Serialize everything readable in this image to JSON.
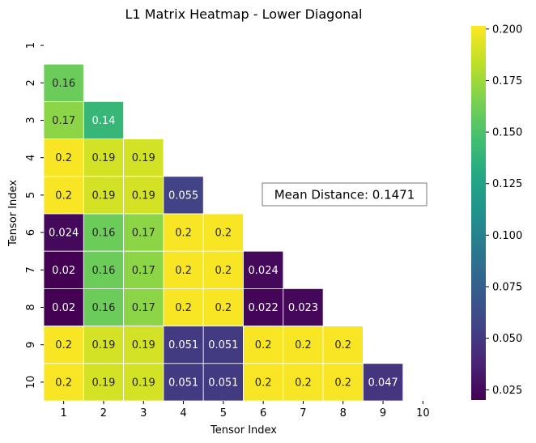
{
  "chart_data": {
    "type": "heatmap",
    "title": "L1 Matrix Heatmap - Lower Diagonal",
    "xlabel": "Tensor Index",
    "ylabel": "Tensor Index",
    "x_ticks": [
      "1",
      "2",
      "3",
      "4",
      "5",
      "6",
      "7",
      "8",
      "9",
      "10"
    ],
    "y_ticks": [
      "1",
      "2",
      "3",
      "4",
      "5",
      "6",
      "7",
      "8",
      "9",
      "10"
    ],
    "colormap": "viridis",
    "vmin": 0.02,
    "vmax": 0.2015,
    "colorbar_ticks": [
      "0.025",
      "0.050",
      "0.075",
      "0.100",
      "0.125",
      "0.150",
      "0.175",
      "0.200"
    ],
    "annotation": "Mean Distance: 0.1471",
    "cells": [
      {
        "row": 2,
        "col": 1,
        "value": 0.16,
        "label": "0.16"
      },
      {
        "row": 3,
        "col": 1,
        "value": 0.17,
        "label": "0.17"
      },
      {
        "row": 3,
        "col": 2,
        "value": 0.14,
        "label": "0.14"
      },
      {
        "row": 4,
        "col": 1,
        "value": 0.2,
        "label": "0.2"
      },
      {
        "row": 4,
        "col": 2,
        "value": 0.19,
        "label": "0.19"
      },
      {
        "row": 4,
        "col": 3,
        "value": 0.19,
        "label": "0.19"
      },
      {
        "row": 5,
        "col": 1,
        "value": 0.2,
        "label": "0.2"
      },
      {
        "row": 5,
        "col": 2,
        "value": 0.19,
        "label": "0.19"
      },
      {
        "row": 5,
        "col": 3,
        "value": 0.19,
        "label": "0.19"
      },
      {
        "row": 5,
        "col": 4,
        "value": 0.055,
        "label": "0.055"
      },
      {
        "row": 6,
        "col": 1,
        "value": 0.024,
        "label": "0.024"
      },
      {
        "row": 6,
        "col": 2,
        "value": 0.16,
        "label": "0.16"
      },
      {
        "row": 6,
        "col": 3,
        "value": 0.17,
        "label": "0.17"
      },
      {
        "row": 6,
        "col": 4,
        "value": 0.2,
        "label": "0.2"
      },
      {
        "row": 6,
        "col": 5,
        "value": 0.2,
        "label": "0.2"
      },
      {
        "row": 7,
        "col": 1,
        "value": 0.02,
        "label": "0.02"
      },
      {
        "row": 7,
        "col": 2,
        "value": 0.16,
        "label": "0.16"
      },
      {
        "row": 7,
        "col": 3,
        "value": 0.17,
        "label": "0.17"
      },
      {
        "row": 7,
        "col": 4,
        "value": 0.2,
        "label": "0.2"
      },
      {
        "row": 7,
        "col": 5,
        "value": 0.2,
        "label": "0.2"
      },
      {
        "row": 7,
        "col": 6,
        "value": 0.024,
        "label": "0.024"
      },
      {
        "row": 8,
        "col": 1,
        "value": 0.02,
        "label": "0.02"
      },
      {
        "row": 8,
        "col": 2,
        "value": 0.16,
        "label": "0.16"
      },
      {
        "row": 8,
        "col": 3,
        "value": 0.17,
        "label": "0.17"
      },
      {
        "row": 8,
        "col": 4,
        "value": 0.2,
        "label": "0.2"
      },
      {
        "row": 8,
        "col": 5,
        "value": 0.2,
        "label": "0.2"
      },
      {
        "row": 8,
        "col": 6,
        "value": 0.022,
        "label": "0.022"
      },
      {
        "row": 8,
        "col": 7,
        "value": 0.023,
        "label": "0.023"
      },
      {
        "row": 9,
        "col": 1,
        "value": 0.2,
        "label": "0.2"
      },
      {
        "row": 9,
        "col": 2,
        "value": 0.19,
        "label": "0.19"
      },
      {
        "row": 9,
        "col": 3,
        "value": 0.19,
        "label": "0.19"
      },
      {
        "row": 9,
        "col": 4,
        "value": 0.051,
        "label": "0.051"
      },
      {
        "row": 9,
        "col": 5,
        "value": 0.051,
        "label": "0.051"
      },
      {
        "row": 9,
        "col": 6,
        "value": 0.2,
        "label": "0.2"
      },
      {
        "row": 9,
        "col": 7,
        "value": 0.2,
        "label": "0.2"
      },
      {
        "row": 9,
        "col": 8,
        "value": 0.2,
        "label": "0.2"
      },
      {
        "row": 10,
        "col": 1,
        "value": 0.2,
        "label": "0.2"
      },
      {
        "row": 10,
        "col": 2,
        "value": 0.19,
        "label": "0.19"
      },
      {
        "row": 10,
        "col": 3,
        "value": 0.19,
        "label": "0.19"
      },
      {
        "row": 10,
        "col": 4,
        "value": 0.051,
        "label": "0.051"
      },
      {
        "row": 10,
        "col": 5,
        "value": 0.051,
        "label": "0.051"
      },
      {
        "row": 10,
        "col": 6,
        "value": 0.2,
        "label": "0.2"
      },
      {
        "row": 10,
        "col": 7,
        "value": 0.2,
        "label": "0.2"
      },
      {
        "row": 10,
        "col": 8,
        "value": 0.2,
        "label": "0.2"
      },
      {
        "row": 10,
        "col": 9,
        "value": 0.047,
        "label": "0.047"
      }
    ]
  }
}
